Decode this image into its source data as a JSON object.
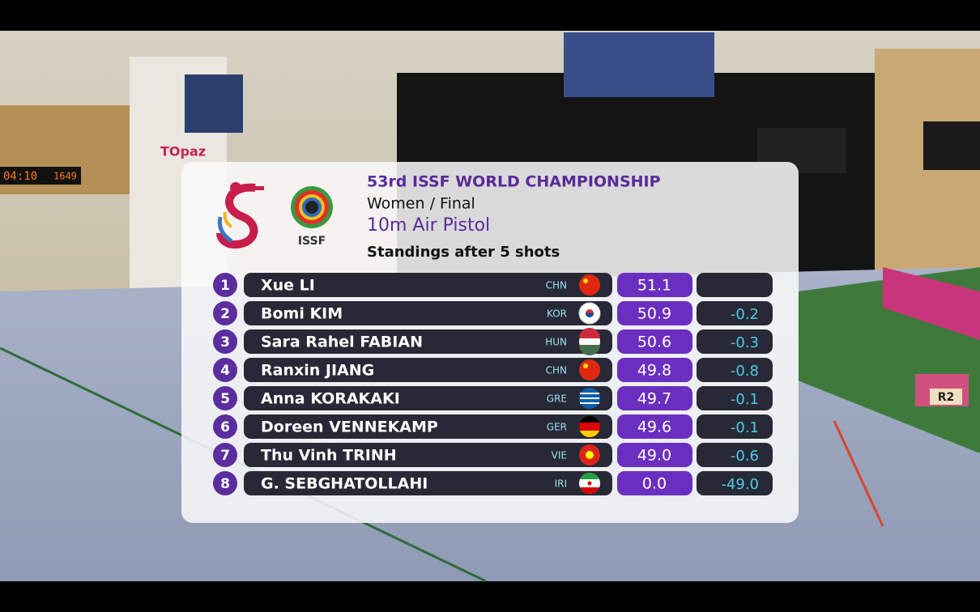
{
  "header": {
    "title": "53rd ISSF WORLD CHAMPIONSHIP",
    "event_group": "Women / Final",
    "event": "10m Air Pistol",
    "status": "Standings after 5 shots",
    "logo_text": "ISSF"
  },
  "standings": [
    {
      "rank": "1",
      "name": "Xue LI",
      "country": "CHN",
      "score": "51.1",
      "diff": null
    },
    {
      "rank": "2",
      "name": "Bomi KIM",
      "country": "KOR",
      "score": "50.9",
      "diff": "-0.2"
    },
    {
      "rank": "3",
      "name": "Sara Rahel FABIAN",
      "country": "HUN",
      "score": "50.6",
      "diff": "-0.3"
    },
    {
      "rank": "4",
      "name": "Ranxin JIANG",
      "country": "CHN",
      "score": "49.8",
      "diff": "-0.8"
    },
    {
      "rank": "5",
      "name": "Anna KORAKAKI",
      "country": "GRE",
      "score": "49.7",
      "diff": "-0.1"
    },
    {
      "rank": "6",
      "name": "Doreen VENNEKAMP",
      "country": "GER",
      "score": "49.6",
      "diff": "-0.1"
    },
    {
      "rank": "7",
      "name": "Thu Vinh TRINH",
      "country": "VIE",
      "score": "49.0",
      "diff": "-0.6"
    },
    {
      "rank": "8",
      "name": "G. SEBGHATOLLAHI",
      "country": "IRI",
      "score": "0.0",
      "diff": "-49.0"
    }
  ],
  "venue": {
    "sponsor": "TOpaz",
    "lane": "R2",
    "clock": "04:10",
    "counter": "1649"
  }
}
